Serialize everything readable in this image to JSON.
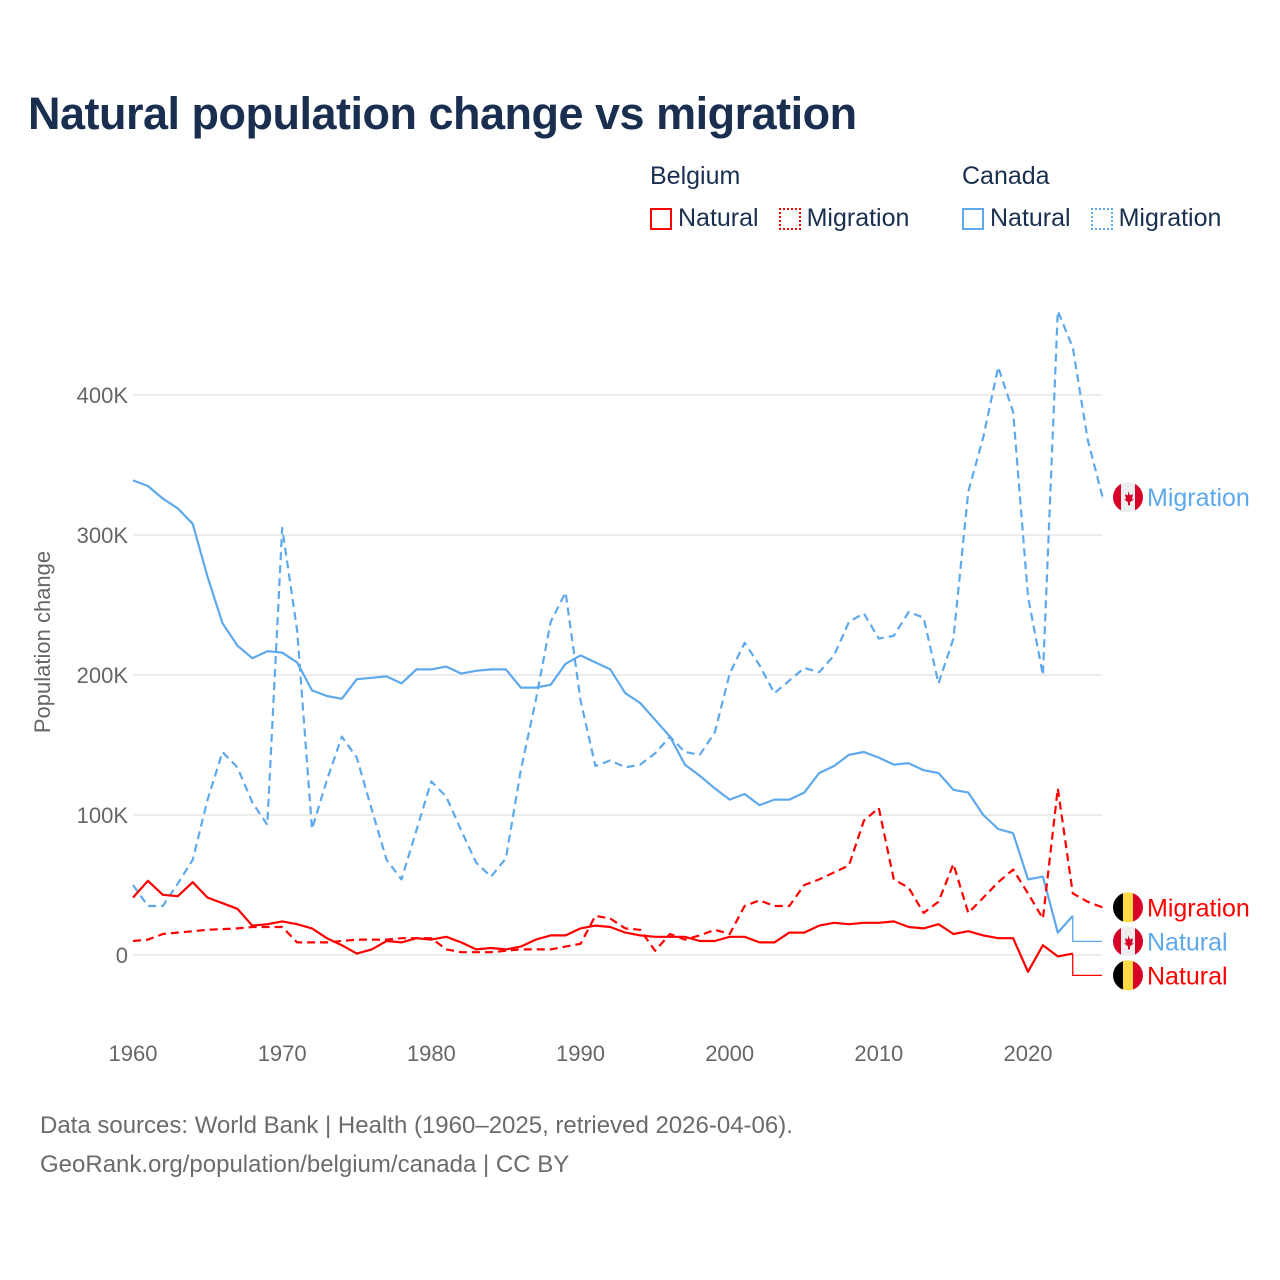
{
  "chart_data": {
    "type": "line",
    "title": "Natural population change vs migration",
    "xlabel": "",
    "ylabel": "Population change",
    "xlim": [
      1960,
      2025
    ],
    "ylim": [
      -30000,
      470000
    ],
    "x_ticks": [
      1960,
      1970,
      1980,
      1990,
      2000,
      2010,
      2020
    ],
    "x_tick_labels": [
      "1960",
      "1970",
      "1980",
      "1990",
      "2000",
      "2010",
      "2020"
    ],
    "y_ticks": [
      0,
      100000,
      200000,
      300000,
      400000
    ],
    "y_tick_labels": [
      "0",
      "100K",
      "200K",
      "300K",
      "400K"
    ],
    "grid": true,
    "legend_position": "top-right",
    "legend_groups": [
      {
        "name": "Belgium",
        "items": [
          "Natural",
          "Migration"
        ],
        "color": "#ff0000"
      },
      {
        "name": "Canada",
        "items": [
          "Natural",
          "Migration"
        ],
        "color": "#5ea8ec"
      }
    ],
    "x_start": 1960,
    "series": [
      {
        "name": "Canada Natural",
        "country": "Canada",
        "label": "Natural",
        "color": "#5ea8ec",
        "dash": false,
        "flag": "canada",
        "values": [
          339,
          335,
          326,
          319,
          308,
          270,
          237,
          221,
          212,
          217,
          216,
          209,
          189,
          185,
          183,
          197,
          198,
          199,
          194,
          204,
          204,
          206,
          201,
          203,
          204,
          204,
          191,
          191,
          193,
          208,
          214,
          209,
          204,
          187,
          180,
          168,
          156,
          136,
          128,
          119,
          111,
          115,
          107,
          111,
          111,
          116,
          130,
          135,
          143,
          145,
          141,
          136,
          137,
          132,
          130,
          118,
          116,
          100,
          90,
          87,
          54,
          56,
          16,
          28
        ]
      },
      {
        "name": "Canada Migration",
        "country": "Canada",
        "label": "Migration",
        "color": "#5ea8ec",
        "dash": true,
        "flag": "canada",
        "values": [
          50,
          35,
          35,
          51,
          68,
          111,
          145,
          134,
          109,
          93,
          305,
          232,
          90,
          125,
          156,
          141,
          104,
          68,
          54,
          89,
          124,
          113,
          89,
          66,
          56,
          69,
          132,
          182,
          238,
          259,
          182,
          135,
          139,
          134,
          136,
          144,
          156,
          145,
          143,
          159,
          201,
          223,
          207,
          187,
          196,
          205,
          202,
          214,
          238,
          244,
          226,
          228,
          245,
          241,
          194,
          226,
          331,
          370,
          420,
          388,
          256,
          200,
          460,
          434,
          368,
          327
        ]
      },
      {
        "name": "Belgium Natural",
        "country": "Belgium",
        "label": "Natural",
        "color": "#ff0000",
        "dash": false,
        "flag": "belgium",
        "values": [
          41,
          53,
          43,
          42,
          52,
          41,
          37,
          33,
          21,
          22,
          24,
          22,
          19,
          12,
          7,
          1,
          4,
          10,
          9,
          12,
          11,
          13,
          9,
          4,
          5,
          4,
          6,
          11,
          14,
          14,
          19,
          21,
          20,
          16,
          14,
          13,
          13,
          13,
          10,
          10,
          13,
          13,
          9,
          9,
          16,
          16,
          21,
          23,
          22,
          23,
          23,
          24,
          20,
          19,
          22,
          15,
          17,
          14,
          12,
          12,
          -12,
          7,
          -1,
          1
        ]
      },
      {
        "name": "Belgium Migration",
        "country": "Belgium",
        "label": "Migration",
        "color": "#ff0000",
        "dash": true,
        "flag": "belgium",
        "values": [
          10,
          11,
          15,
          16,
          17,
          18,
          18.5,
          19,
          20,
          20,
          20,
          9,
          9,
          9,
          10,
          11,
          11,
          11,
          12,
          12,
          12,
          4,
          2,
          2,
          2,
          3,
          4,
          4,
          4,
          6,
          8,
          28,
          26,
          19,
          18,
          3,
          15,
          11,
          14,
          18,
          15,
          35,
          39,
          35,
          35,
          50,
          54,
          59,
          64,
          96,
          105,
          54,
          48,
          30,
          38,
          65,
          30,
          41,
          52,
          61,
          44,
          26,
          119,
          44,
          38,
          34
        ]
      }
    ],
    "value_unit": "thousands"
  },
  "footer": {
    "line1": "Data sources: World Bank | Health (1960–2025, retrieved 2026-04-06).",
    "line2": "GeoRank.org/population/belgium/canada | CC BY"
  }
}
